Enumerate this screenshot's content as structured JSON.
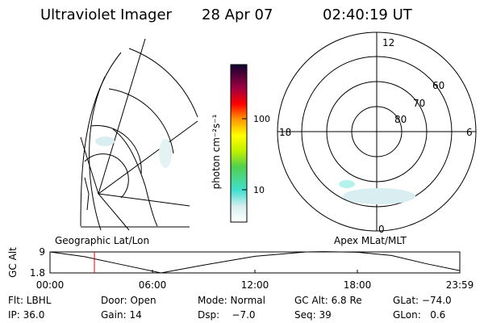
{
  "header": {
    "title": "Ultraviolet Imager",
    "date": "28 Apr 07",
    "time": "02:40:19 UT"
  },
  "colorbar": {
    "label": "photon cm⁻²s⁻¹",
    "ticks": [
      10,
      100
    ]
  },
  "polar": {
    "mlt_labels": [
      "12",
      "18",
      "6",
      "0"
    ],
    "lat_labels": [
      "60",
      "70",
      "80"
    ]
  },
  "map_labels": {
    "left": "Geographic Lat/Lon",
    "right": "Apex MLat/MLT"
  },
  "altitude_plot": {
    "ylabel": "GC Alt",
    "ylim": [
      1.8,
      9.0
    ],
    "yticks": [
      1.8,
      9.0
    ],
    "xlim": [
      0,
      24
    ],
    "xticks": [
      {
        "value": 0,
        "label": "00:00"
      },
      {
        "value": 6,
        "label": "06:00"
      },
      {
        "value": 12,
        "label": "12:00"
      },
      {
        "value": 18,
        "label": "18:00"
      },
      {
        "value": 24,
        "label": "23:59"
      }
    ],
    "x": [
      0,
      2,
      4,
      6.5,
      9,
      12,
      15,
      16,
      18,
      20,
      22,
      24
    ],
    "values": [
      9.0,
      7.4,
      4.9,
      1.8,
      4.5,
      7.5,
      9.0,
      9.1,
      8.9,
      7.8,
      5.0,
      2.6
    ],
    "current_time": 2.6
  },
  "footer": {
    "rows": [
      [
        "Flt: LBHL",
        "Door: Open",
        "Mode: Normal",
        "GC Alt: 6.8 Re",
        "GLat: −74.0"
      ],
      [
        "IP: 36.0",
        "Gain: 14",
        "Dsp:    −7.0",
        "Seq: 39",
        "GLon:   0.6"
      ]
    ]
  }
}
